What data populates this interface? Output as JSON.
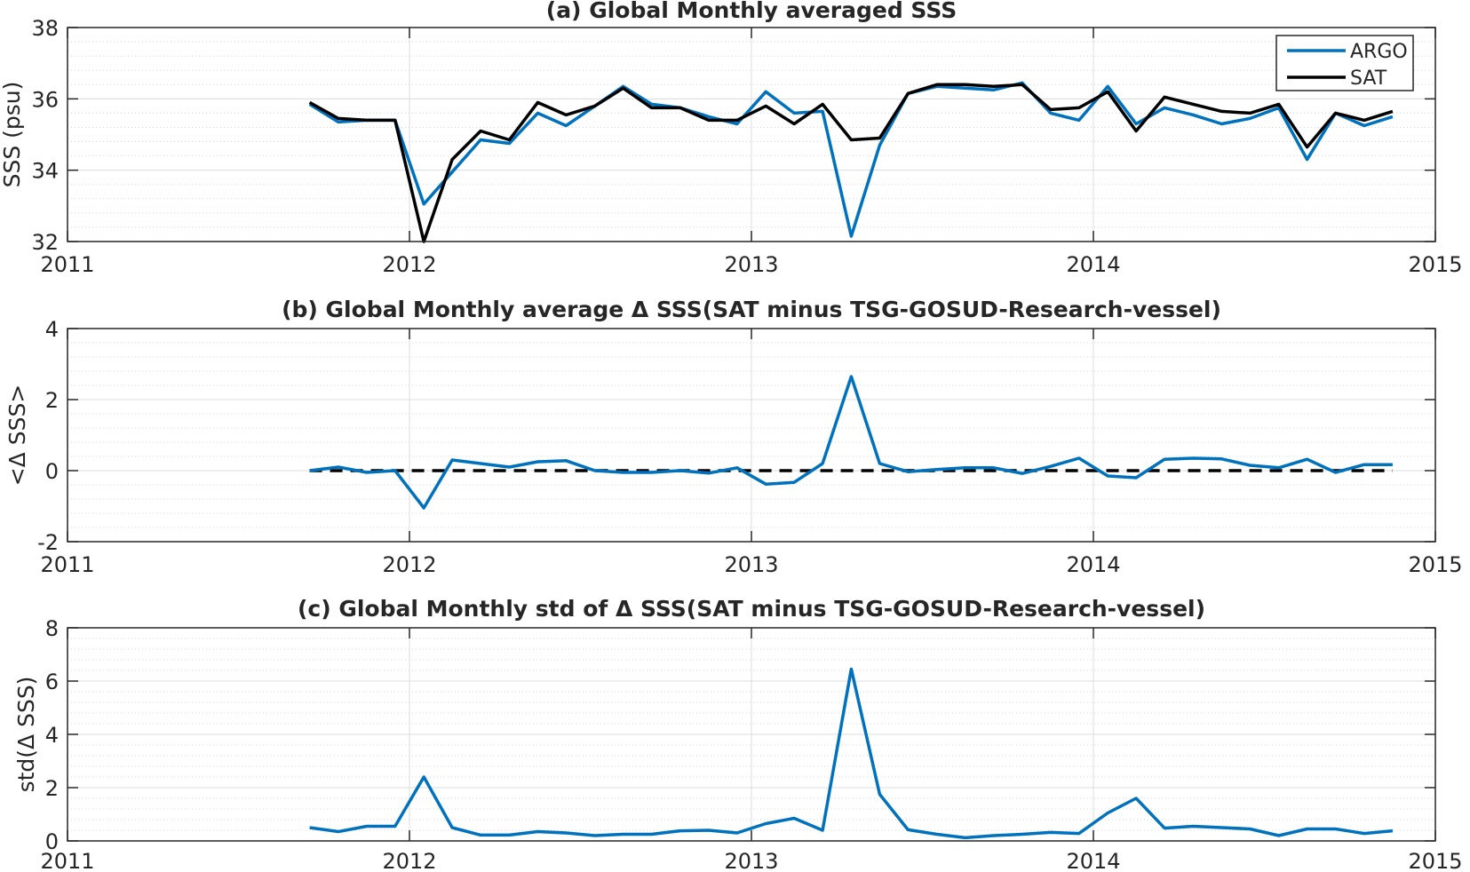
{
  "chart_data": [
    {
      "type": "line",
      "title": "(a) Global Monthly averaged SSS",
      "xlabel": "",
      "ylabel": "SSS (psu)",
      "xlim": [
        2011,
        2015
      ],
      "ylim": [
        32,
        38
      ],
      "xticks": [
        2011,
        2012,
        2013,
        2014,
        2015
      ],
      "yticks": [
        32,
        34,
        36,
        38
      ],
      "grid": true,
      "minor_grid": true,
      "legend": "top-right",
      "x": [
        2011.708,
        2011.792,
        2011.875,
        2011.958,
        2012.042,
        2012.125,
        2012.208,
        2012.292,
        2012.375,
        2012.458,
        2012.542,
        2012.625,
        2012.708,
        2012.792,
        2012.875,
        2012.958,
        2013.042,
        2013.125,
        2013.208,
        2013.292,
        2013.375,
        2013.458,
        2013.542,
        2013.625,
        2013.708,
        2013.792,
        2013.875,
        2013.958,
        2014.042,
        2014.125,
        2014.208,
        2014.292,
        2014.375,
        2014.458,
        2014.542,
        2014.625,
        2014.708,
        2014.792,
        2014.875
      ],
      "series": [
        {
          "name": "ARGO",
          "color": "#0072bd",
          "values": [
            35.85,
            35.35,
            35.4,
            35.4,
            33.05,
            33.95,
            34.85,
            34.75,
            35.6,
            35.25,
            35.8,
            36.35,
            35.85,
            35.75,
            35.5,
            35.3,
            36.2,
            35.6,
            35.65,
            32.15,
            34.7,
            36.15,
            36.35,
            36.3,
            36.25,
            36.45,
            35.6,
            35.4,
            36.35,
            35.3,
            35.75,
            35.55,
            35.3,
            35.45,
            35.75,
            34.3,
            35.6,
            35.25,
            35.5
          ]
        },
        {
          "name": "SAT",
          "color": "#000000",
          "values": [
            35.9,
            35.45,
            35.4,
            35.4,
            32.0,
            34.3,
            35.1,
            34.85,
            35.9,
            35.55,
            35.8,
            36.3,
            35.75,
            35.75,
            35.4,
            35.4,
            35.8,
            35.3,
            35.85,
            34.85,
            34.9,
            36.15,
            36.4,
            36.4,
            36.35,
            36.4,
            35.7,
            35.75,
            36.2,
            35.1,
            36.05,
            35.85,
            35.65,
            35.6,
            35.85,
            34.65,
            35.6,
            35.4,
            35.65
          ]
        }
      ]
    },
    {
      "type": "line",
      "title": "(b) Global Monthly average Δ SSS(SAT minus TSG-GOSUD-Research-vessel)",
      "xlabel": "",
      "ylabel": "<Δ SSS>",
      "xlim": [
        2011,
        2015
      ],
      "ylim": [
        -2,
        4
      ],
      "xticks": [
        2011,
        2012,
        2013,
        2014,
        2015
      ],
      "yticks": [
        -2,
        0,
        2,
        4
      ],
      "grid": true,
      "minor_grid": true,
      "zero_reference_line": "dashed-black",
      "x": [
        2011.708,
        2011.792,
        2011.875,
        2011.958,
        2012.042,
        2012.125,
        2012.208,
        2012.292,
        2012.375,
        2012.458,
        2012.542,
        2012.625,
        2012.708,
        2012.792,
        2012.875,
        2012.958,
        2013.042,
        2013.125,
        2013.208,
        2013.292,
        2013.375,
        2013.458,
        2013.542,
        2013.625,
        2013.708,
        2013.792,
        2013.875,
        2013.958,
        2014.042,
        2014.125,
        2014.208,
        2014.292,
        2014.375,
        2014.458,
        2014.542,
        2014.625,
        2014.708,
        2014.792,
        2014.875
      ],
      "series": [
        {
          "color": "#0072bd",
          "values": [
            0.0,
            0.1,
            -0.05,
            0.0,
            -1.05,
            0.3,
            0.2,
            0.1,
            0.25,
            0.28,
            0.0,
            -0.05,
            -0.05,
            0.0,
            -0.07,
            0.08,
            -0.38,
            -0.33,
            0.2,
            2.65,
            0.2,
            -0.03,
            0.03,
            0.08,
            0.08,
            -0.08,
            0.12,
            0.35,
            -0.15,
            -0.2,
            0.32,
            0.35,
            0.33,
            0.15,
            0.08,
            0.32,
            -0.05,
            0.17,
            0.17
          ]
        }
      ]
    },
    {
      "type": "line",
      "title": "(c) Global Monthly std of Δ SSS(SAT minus TSG-GOSUD-Research-vessel)",
      "xlabel": "",
      "ylabel": "std(Δ SSS)",
      "xlim": [
        2011,
        2015
      ],
      "ylim": [
        0,
        8
      ],
      "xticks": [
        2011,
        2012,
        2013,
        2014,
        2015
      ],
      "yticks": [
        0,
        2,
        4,
        6,
        8
      ],
      "grid": true,
      "minor_grid": true,
      "x": [
        2011.708,
        2011.792,
        2011.875,
        2011.958,
        2012.042,
        2012.125,
        2012.208,
        2012.292,
        2012.375,
        2012.458,
        2012.542,
        2012.625,
        2012.708,
        2012.792,
        2012.875,
        2012.958,
        2013.042,
        2013.125,
        2013.208,
        2013.292,
        2013.375,
        2013.458,
        2013.542,
        2013.625,
        2013.708,
        2013.792,
        2013.875,
        2013.958,
        2014.042,
        2014.125,
        2014.208,
        2014.292,
        2014.375,
        2014.458,
        2014.542,
        2014.625,
        2014.708,
        2014.792,
        2014.875
      ],
      "series": [
        {
          "color": "#0072bd",
          "values": [
            0.5,
            0.35,
            0.55,
            0.55,
            2.4,
            0.5,
            0.22,
            0.22,
            0.35,
            0.3,
            0.2,
            0.25,
            0.25,
            0.38,
            0.4,
            0.3,
            0.65,
            0.85,
            0.4,
            6.45,
            1.75,
            0.42,
            0.25,
            0.12,
            0.2,
            0.25,
            0.32,
            0.28,
            1.05,
            1.6,
            0.48,
            0.55,
            0.5,
            0.45,
            0.2,
            0.45,
            0.45,
            0.28,
            0.38
          ]
        }
      ]
    }
  ]
}
